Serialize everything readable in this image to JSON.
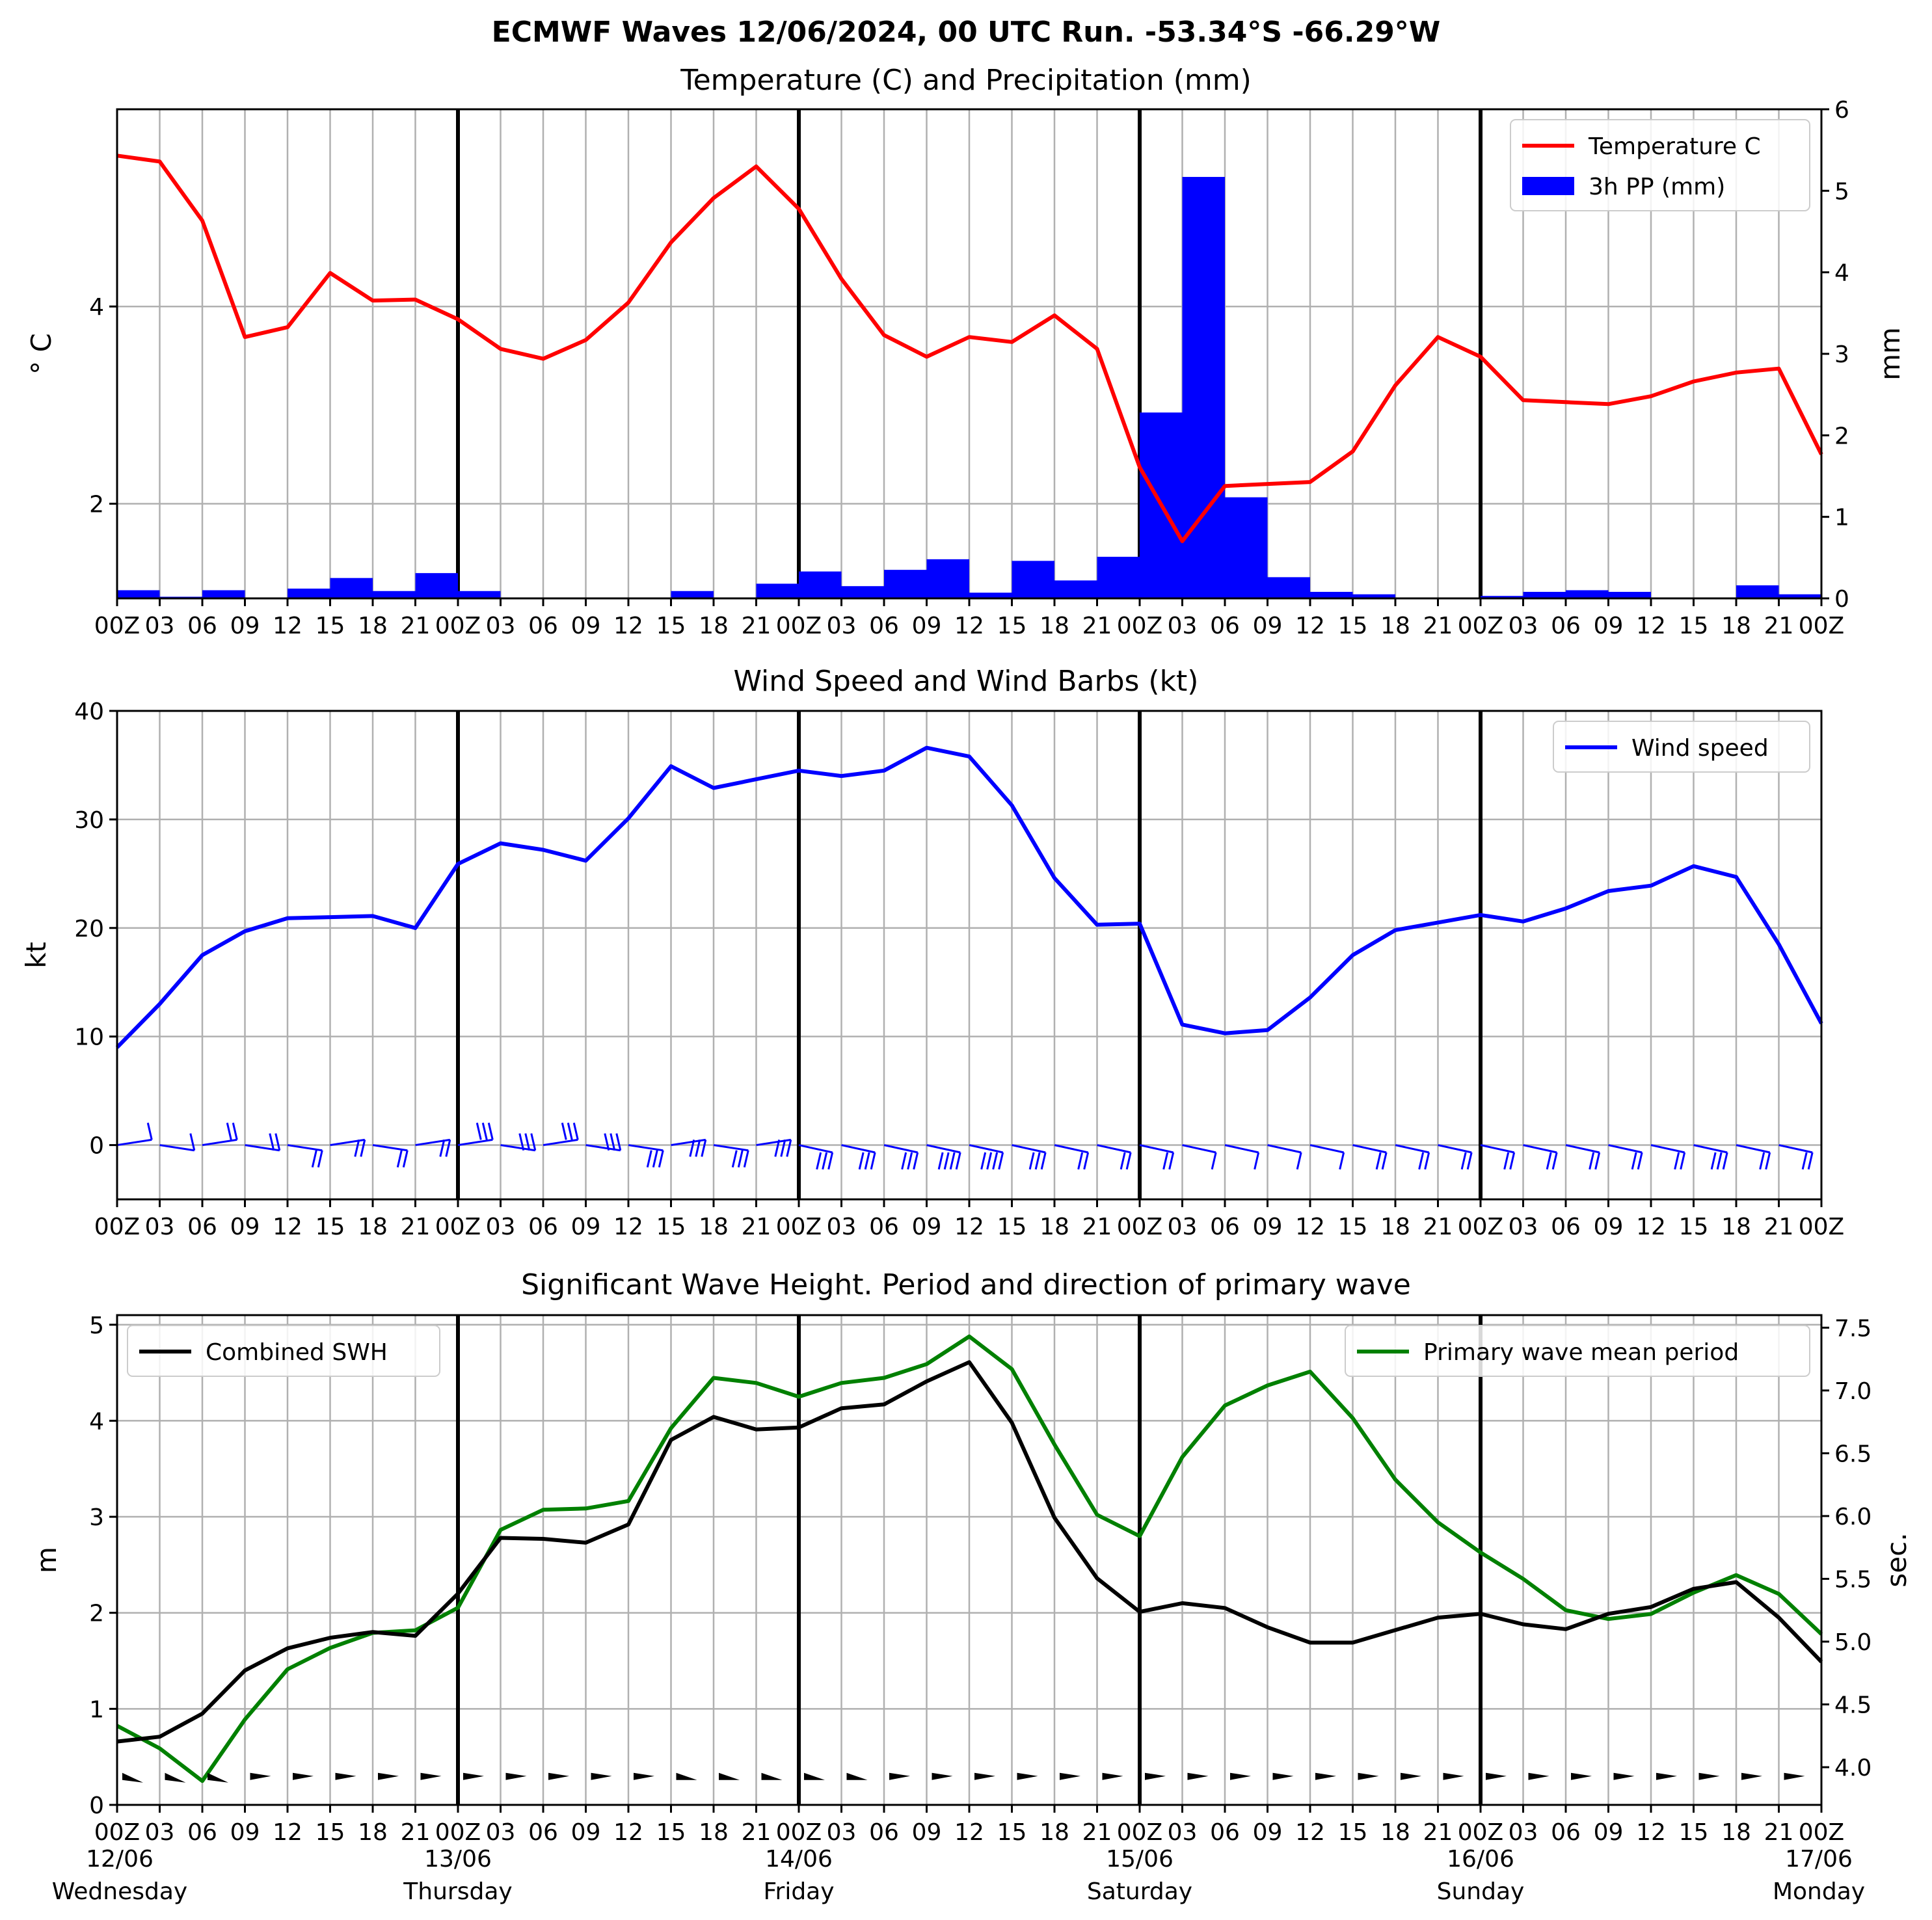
{
  "title": "ECMWF Waves 12/06/2024, 00 UTC Run. -53.34°S -66.29°W",
  "x_hour_labels": [
    "00Z",
    "03",
    "06",
    "09",
    "12",
    "15",
    "18",
    "21",
    "00Z",
    "03",
    "06",
    "09",
    "12",
    "15",
    "18",
    "21",
    "00Z",
    "03",
    "06",
    "09",
    "12",
    "15",
    "18",
    "21",
    "00Z",
    "03",
    "06",
    "09",
    "12",
    "15",
    "18",
    "21",
    "00Z",
    "03",
    "06",
    "09",
    "12",
    "15",
    "18",
    "21",
    "00Z"
  ],
  "day_labels": [
    {
      "date": "12/06",
      "day": "Wednesday"
    },
    {
      "date": "13/06",
      "day": "Thursday"
    },
    {
      "date": "14/06",
      "day": "Friday"
    },
    {
      "date": "15/06",
      "day": "Saturday"
    },
    {
      "date": "16/06",
      "day": "Sunday"
    },
    {
      "date": "17/06",
      "day": "Monday"
    }
  ],
  "colors": {
    "temperature": "#ff0000",
    "precip": "#0000ff",
    "wind": "#0000ff",
    "swh": "#000000",
    "period": "#008000"
  },
  "chart_data": [
    {
      "type": "line",
      "title": "Temperature (C) and Precipitation (mm)",
      "ylabel": "° C",
      "ylabel_right": "mm",
      "xlim_hours": [
        0,
        120
      ],
      "ylim": [
        1.04,
        6.0
      ],
      "ylim_right": [
        0,
        6
      ],
      "yticks": [
        2,
        4
      ],
      "yticks_right": [
        0,
        1,
        2,
        3,
        4,
        5,
        6
      ],
      "grid": true,
      "legend": "top-right",
      "series": [
        {
          "name": "Temperature C",
          "kind": "line",
          "x_step_hours": 3,
          "values": [
            5.53,
            5.47,
            4.87,
            3.69,
            3.79,
            4.34,
            4.06,
            4.07,
            3.87,
            3.57,
            3.47,
            3.66,
            4.04,
            4.65,
            5.1,
            5.42,
            4.99,
            4.28,
            3.71,
            3.49,
            3.69,
            3.64,
            3.91,
            3.57,
            2.37,
            1.62,
            2.18,
            2.2,
            2.22,
            2.53,
            3.2,
            3.69,
            3.49,
            3.05,
            3.03,
            3.01,
            3.09,
            3.24,
            3.33,
            3.37,
            2.5
          ]
        },
        {
          "name": "3h PP (mm)",
          "kind": "bar",
          "x_step_hours": 3,
          "values": [
            0.1,
            0.02,
            0.1,
            0.0,
            0.12,
            0.25,
            0.09,
            0.31,
            0.09,
            0.0,
            0.0,
            0.0,
            0.0,
            0.09,
            0.0,
            0.18,
            0.33,
            0.15,
            0.35,
            0.48,
            0.07,
            0.46,
            0.22,
            0.51,
            2.28,
            5.17,
            1.24,
            0.26,
            0.08,
            0.05,
            0.0,
            0.0,
            0.03,
            0.08,
            0.1,
            0.08,
            0.0,
            0.0,
            0.16,
            0.05,
            0.08
          ]
        }
      ]
    },
    {
      "type": "line",
      "title": "Wind Speed and Wind Barbs (kt)",
      "ylabel": "kt",
      "xlim_hours": [
        0,
        120
      ],
      "ylim": [
        -5,
        40
      ],
      "yticks": [
        0,
        10,
        20,
        30,
        40
      ],
      "grid": true,
      "legend": "top-right",
      "series": [
        {
          "name": "Wind speed",
          "x_step_hours": 3,
          "values": [
            9.0,
            13.0,
            17.5,
            19.7,
            20.9,
            21.0,
            21.1,
            20.0,
            25.9,
            27.8,
            27.2,
            26.2,
            30.1,
            34.9,
            32.9,
            33.7,
            34.5,
            34.0,
            34.5,
            36.6,
            35.8,
            31.3,
            24.6,
            20.3,
            20.4,
            11.1,
            10.3,
            10.6,
            13.6,
            17.5,
            19.8,
            20.5,
            21.2,
            20.6,
            21.8,
            23.4,
            23.9,
            25.7,
            24.7,
            18.5,
            11.2
          ]
        }
      ]
    },
    {
      "type": "line",
      "title": "Significant Wave Height. Period and direction of primary wave",
      "ylabel": "m",
      "ylabel_right": "sec.",
      "xlim_hours": [
        0,
        120
      ],
      "ylim": [
        0,
        5.1
      ],
      "ylim_right": [
        3.7,
        7.6
      ],
      "yticks": [
        0,
        1,
        2,
        3,
        4,
        5
      ],
      "yticks_right": [
        4.0,
        4.5,
        5.0,
        5.5,
        6.0,
        6.5,
        7.0,
        7.5
      ],
      "grid": true,
      "legend": [
        "top-left",
        "top-right"
      ],
      "series": [
        {
          "name": "Combined SWH",
          "axis": "left",
          "x_step_hours": 3,
          "values": [
            0.66,
            0.71,
            0.95,
            1.4,
            1.63,
            1.74,
            1.8,
            1.76,
            2.2,
            2.78,
            2.77,
            2.73,
            2.92,
            3.8,
            4.04,
            3.91,
            3.93,
            4.13,
            4.17,
            4.41,
            4.61,
            3.98,
            2.99,
            2.36,
            2.01,
            2.1,
            2.05,
            1.85,
            1.69,
            1.69,
            1.82,
            1.95,
            1.99,
            1.88,
            1.83,
            1.99,
            2.06,
            2.25,
            2.32,
            1.95,
            1.49
          ]
        },
        {
          "name": "Primary wave mean period",
          "axis": "right",
          "x_step_hours": 3,
          "values": [
            4.33,
            4.15,
            3.89,
            4.38,
            4.78,
            4.95,
            5.07,
            5.09,
            5.27,
            5.89,
            6.05,
            6.06,
            6.12,
            6.7,
            7.1,
            7.06,
            6.95,
            7.06,
            7.1,
            7.21,
            7.43,
            7.17,
            6.57,
            6.01,
            5.84,
            6.47,
            6.88,
            7.04,
            7.15,
            6.78,
            6.29,
            5.95,
            5.71,
            5.5,
            5.25,
            5.18,
            5.22,
            5.39,
            5.53,
            5.38,
            5.06
          ]
        }
      ]
    }
  ]
}
